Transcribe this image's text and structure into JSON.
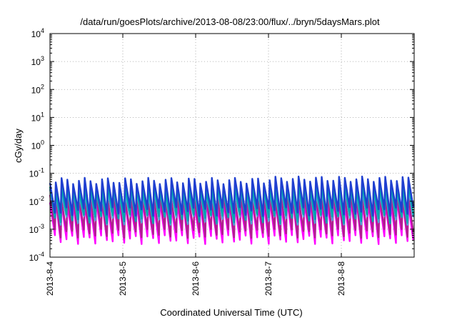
{
  "chart_data": {
    "type": "line",
    "title": "/data/run/goesPlots/archive/2013-08-08/23:00/flux/../bryn/5daysMars.plot",
    "xlabel": "Coordinated Universal Time (UTC)",
    "ylabel": "cGy/day",
    "yscale": "log",
    "ylim": [
      0.0001,
      10000
    ],
    "ytick_labels": [
      {
        "base": "10",
        "exp": "-4"
      },
      {
        "base": "10",
        "exp": "-3"
      },
      {
        "base": "10",
        "exp": "-2"
      },
      {
        "base": "10",
        "exp": "-1"
      },
      {
        "base": "10",
        "exp": "0"
      },
      {
        "base": "10",
        "exp": "1"
      },
      {
        "base": "10",
        "exp": "2"
      },
      {
        "base": "10",
        "exp": "3"
      },
      {
        "base": "10",
        "exp": "4"
      }
    ],
    "xlim": [
      "2013-08-04",
      "2013-08-09"
    ],
    "xticks": [
      "2013-8-4",
      "2013-8-5",
      "2013-8-6",
      "2013-8-7",
      "2013-8-8"
    ],
    "grid": true,
    "sawtooth_cycles_per_day": 12.5,
    "series": [
      {
        "color": "#1f3fd0",
        "peak": 0.055,
        "trough": 0.0045
      },
      {
        "color": "#00a6b0",
        "peak": 0.032,
        "trough": 0.0025
      },
      {
        "color": "#4aa8d8",
        "peak": 0.022,
        "trough": 0.0022
      },
      {
        "color": "#b01f8f",
        "peak": 0.014,
        "trough": 0.00075
      },
      {
        "color": "#ff00ff",
        "peak": 0.009,
        "trough": 0.00045
      }
    ]
  }
}
